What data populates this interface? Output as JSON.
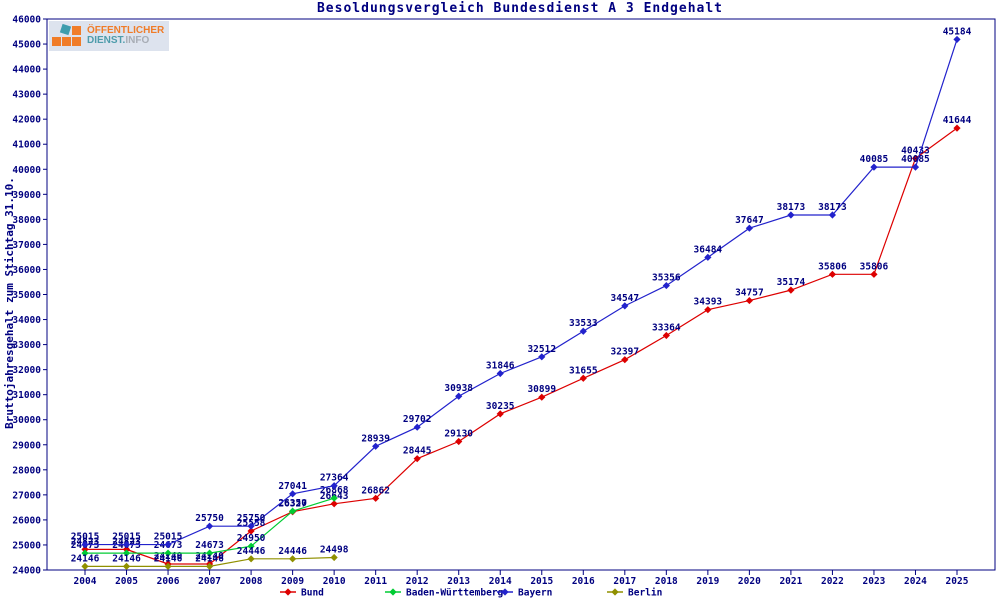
{
  "title": "Besoldungsvergleich Bundesdienst A 3 Endgehalt",
  "logo": {
    "line1": "ÖFFENTLICHER",
    "line2_part1": "DIENST.",
    "line2_part2": "INFO"
  },
  "colors": {
    "axis_and_text": "#000080",
    "bund": "#dd0000",
    "baden_wuerttemberg": "#00cc33",
    "bayern": "#2222cc",
    "berlin": "#909000",
    "logo_orange": "#f07c28",
    "logo_teal": "#4e9cab",
    "logo_gray": "#a8adb5",
    "logo_background": "#dde3ee"
  },
  "chart_data": {
    "type": "line",
    "title": "Besoldungsvergleich Bundesdienst A 3 Endgehalt",
    "xlabel": "",
    "ylabel": "Bruttojahresgehalt zum Stichtag 31.10.",
    "ylim": [
      24000,
      46000
    ],
    "ytick_step": 1000,
    "grid": false,
    "legend_position": "bottom",
    "point_labels": true,
    "years": [
      2004,
      2005,
      2006,
      2007,
      2008,
      2009,
      2010,
      2011,
      2012,
      2013,
      2014,
      2015,
      2016,
      2017,
      2018,
      2019,
      2020,
      2021,
      2022,
      2023,
      2024,
      2025
    ],
    "series": [
      {
        "name": "Bund",
        "color": "#dd0000",
        "x": [
          2004,
          2005,
          2006,
          2007,
          2008,
          2009,
          2010,
          2011,
          2012,
          2013,
          2014,
          2015,
          2016,
          2017,
          2018,
          2019,
          2020,
          2021,
          2022,
          2023,
          2024,
          2025
        ],
        "values": [
          24823,
          24823,
          24240,
          24240,
          25558,
          26327,
          26643,
          26862,
          28445,
          29130,
          30235,
          30899,
          31655,
          32397,
          33364,
          34393,
          34757,
          35174,
          35806,
          35806,
          40433,
          41644
        ]
      },
      {
        "name": "Baden-Württemberg",
        "color": "#00cc33",
        "x": [
          2004,
          2005,
          2006,
          2007,
          2008,
          2009,
          2010
        ],
        "values": [
          24673,
          24673,
          24673,
          24673,
          24950,
          26350,
          26868
        ]
      },
      {
        "name": "Bayern",
        "color": "#2222cc",
        "x": [
          2004,
          2005,
          2006,
          2007,
          2008,
          2009,
          2010,
          2011,
          2012,
          2013,
          2014,
          2015,
          2016,
          2017,
          2018,
          2019,
          2020,
          2021,
          2022,
          2023,
          2024,
          2025
        ],
        "values": [
          25015,
          25015,
          25015,
          25750,
          25750,
          27041,
          27364,
          28939,
          29702,
          30938,
          31846,
          32512,
          33533,
          34547,
          35356,
          36484,
          37647,
          38173,
          38173,
          40085,
          40085,
          45184
        ]
      },
      {
        "name": "Berlin",
        "color": "#909000",
        "x": [
          2004,
          2005,
          2006,
          2007,
          2008,
          2009,
          2010
        ],
        "values": [
          24146,
          24146,
          24146,
          24146,
          24446,
          24446,
          24498
        ]
      }
    ]
  }
}
